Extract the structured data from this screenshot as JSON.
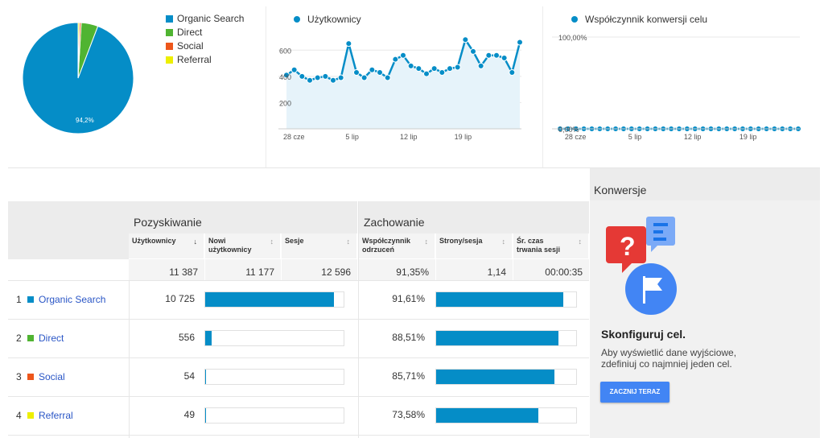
{
  "top": {
    "pie": {
      "slices": [
        {
          "name": "Organic Search",
          "value": 94.2,
          "color": "#058dc7"
        },
        {
          "name": "Direct",
          "value": 4.9,
          "color": "#50b432"
        },
        {
          "name": "Social",
          "value": 0.5,
          "color": "#ed561b"
        },
        {
          "name": "Referral",
          "value": 0.4,
          "color": "#edef00"
        }
      ],
      "label": "94,2%"
    },
    "legend": [
      {
        "label": "Organic Search",
        "color": "#058dc7"
      },
      {
        "label": "Direct",
        "color": "#50b432"
      },
      {
        "label": "Social",
        "color": "#ed561b"
      },
      {
        "label": "Referral",
        "color": "#edef00"
      }
    ]
  },
  "chart_data": [
    {
      "type": "area",
      "title": "Użytkownicy",
      "y_ticks": [
        "600",
        "400",
        "200"
      ],
      "ylim": [
        0,
        700
      ],
      "x_ticks": [
        "28 cze",
        "5 lip",
        "12 lip",
        "19 lip"
      ],
      "values": [
        410,
        450,
        400,
        370,
        390,
        400,
        370,
        390,
        650,
        430,
        390,
        450,
        430,
        390,
        530,
        560,
        480,
        460,
        420,
        460,
        430,
        460,
        470,
        680,
        590,
        480,
        560,
        560,
        540,
        430,
        660
      ]
    },
    {
      "type": "line",
      "title": "Współczynnik konwersji celu",
      "y_ticks": [
        "100,00%",
        "0,00%"
      ],
      "ylim": [
        0,
        100
      ],
      "x_ticks": [
        "28 cze",
        "5 lip",
        "12 lip",
        "19 lip"
      ],
      "values": [
        0,
        0,
        0,
        0,
        0,
        0,
        0,
        0,
        0,
        0,
        0,
        0,
        0,
        0,
        0,
        0,
        0,
        0,
        0,
        0,
        0,
        0,
        0,
        0,
        0,
        0,
        0,
        0,
        0,
        0,
        0
      ]
    }
  ],
  "table": {
    "groups": {
      "acquisition": "Pozyskiwanie",
      "behavior": "Zachowanie"
    },
    "columns": {
      "users": "Użytkownicy",
      "new_users": "Nowi użytkownicy",
      "sessions": "Sesje",
      "bounce": "Współczynnik odrzuceń",
      "pages": "Strony/sesja",
      "duration": "Śr. czas trwania sesji"
    },
    "sort_icon": "↓",
    "totals": {
      "users": "11 387",
      "new_users": "11 177",
      "sessions": "12 596",
      "bounce": "91,35%",
      "pages": "1,14",
      "duration": "00:00:35"
    },
    "rows": [
      {
        "num": "1",
        "label": "Organic Search",
        "color": "#058dc7",
        "users": "10 725",
        "users_frac": 0.942,
        "bounce": "91,61%",
        "bounce_frac": 0.9161
      },
      {
        "num": "2",
        "label": "Direct",
        "color": "#50b432",
        "users": "556",
        "users_frac": 0.049,
        "bounce": "88,51%",
        "bounce_frac": 0.8851
      },
      {
        "num": "3",
        "label": "Social",
        "color": "#ed561b",
        "users": "54",
        "users_frac": 0.005,
        "bounce": "85,71%",
        "bounce_frac": 0.8571
      },
      {
        "num": "4",
        "label": "Referral",
        "color": "#edef00",
        "users": "49",
        "users_frac": 0.004,
        "bounce": "73,58%",
        "bounce_frac": 0.7358
      }
    ]
  },
  "conversions": {
    "title": "Konwersje",
    "subtitle": "Skonfiguruj cel.",
    "description": "Aby wyświetlić dane wyjściowe, zdefiniuj co najmniej jeden cel.",
    "button": "ZACZNIJ TERAZ"
  }
}
